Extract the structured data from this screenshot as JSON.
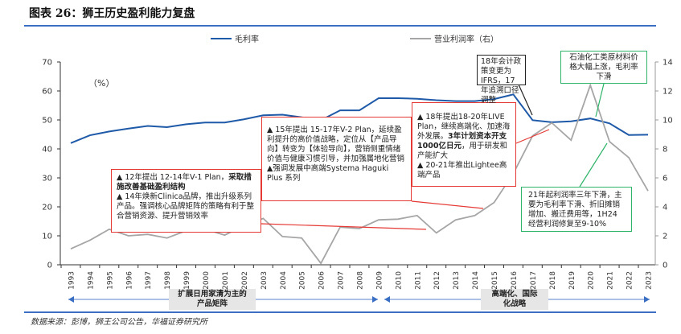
{
  "title": "图表 26：狮王历史盈利能力复盘",
  "source": "数据来源：彭博，狮王公司公告，华福证券研究所",
  "chart_data": {
    "type": "line",
    "title": "狮王历史盈利能力复盘",
    "unit_label": "（%）",
    "x": [
      "1993",
      "1994",
      "1995",
      "1996",
      "1997",
      "1998",
      "1999",
      "2000",
      "2001",
      "2002",
      "2003",
      "2004",
      "2005",
      "2006",
      "2007",
      "2008",
      "2009",
      "2010",
      "2011",
      "2012",
      "2013",
      "2014",
      "2015",
      "2016",
      "2017",
      "2018",
      "2019",
      "2020",
      "2021",
      "2022",
      "2023"
    ],
    "series": [
      {
        "name": "毛利率",
        "axis": "left",
        "color": "#1f5aa8",
        "values": [
          42.0,
          44.7,
          46.0,
          47.0,
          47.9,
          47.5,
          48.5,
          49.1,
          49.1,
          50.2,
          51.6,
          51.8,
          50.9,
          49.9,
          53.3,
          53.3,
          57.5,
          57.5,
          57.3,
          56.8,
          56.5,
          56.5,
          57.2,
          58.8,
          49.9,
          49.2,
          49.5,
          50.5,
          48.8,
          44.8,
          44.9
        ]
      },
      {
        "name": "营业利润率（右）",
        "axis": "right",
        "color": "#a6a6a6",
        "values": [
          1.1,
          1.7,
          2.45,
          2.0,
          2.1,
          1.85,
          2.35,
          2.45,
          2.05,
          2.7,
          3.2,
          1.95,
          1.85,
          0.1,
          2.6,
          2.5,
          3.1,
          3.15,
          3.4,
          2.2,
          3.1,
          3.4,
          4.3,
          6.3,
          8.9,
          9.8,
          8.6,
          12.4,
          8.5,
          7.4,
          5.1
        ]
      }
    ],
    "ylim_left": [
      0,
      70
    ],
    "yticks_left": [
      "0",
      "10",
      "20",
      "30",
      "40",
      "50",
      "60",
      "70"
    ],
    "ylim_right": [
      0,
      14
    ],
    "yticks_right": [
      "0",
      "2",
      "4",
      "6",
      "8",
      "10",
      "12",
      "14"
    ],
    "legend_position": "top",
    "grid": false
  },
  "annotations": {
    "a1_line1": "▲ 12年提出 12-14年V-1 Plan，",
    "a1_bold": "采取措施改善基础盈利结构",
    "a1_line2": "▲ 14年焕新Clinica品牌，推出升级系列产品。强调核心品牌矩阵的策略有利于整合营销资源、提升营销效率",
    "a2_line1": "▲ 15年提出 15-17年V-2 Plan，延续盈利提升的高价值战略，定位从【产品导向】转变为【体验导向】，营销侧重情绪价值与健康习惯引导，并加强属地化营销",
    "a2_line2": "▲强调发展中高端Systema Haguki Plus 系列",
    "a3_line1a": "▲ 18年提出18-20年LIVE Plan，继续高端化、加速海外发展。",
    "a3_bold": "3年计划资本开支1000亿日元",
    "a3_line1b": "，用于研发和产能扩大",
    "a3_line2": "▲ 20-21年推出Lightee高端产品",
    "a4": "18年会计政策变更为IFRS，17年追溯口径调整",
    "a5": "石油化工类原材料价格大幅上涨，毛利率下滑",
    "a6": "21年起利润率三年下滑，主要为毛利率下滑、折旧摊销增加、搬迁费用等，1H24经营利润修复至9-10%"
  },
  "phases": [
    {
      "label_1": "扩展日用家清为主的",
      "label_2": "产品矩阵"
    },
    {
      "label_1": "高端化、国际",
      "label_2": "化战略"
    }
  ]
}
